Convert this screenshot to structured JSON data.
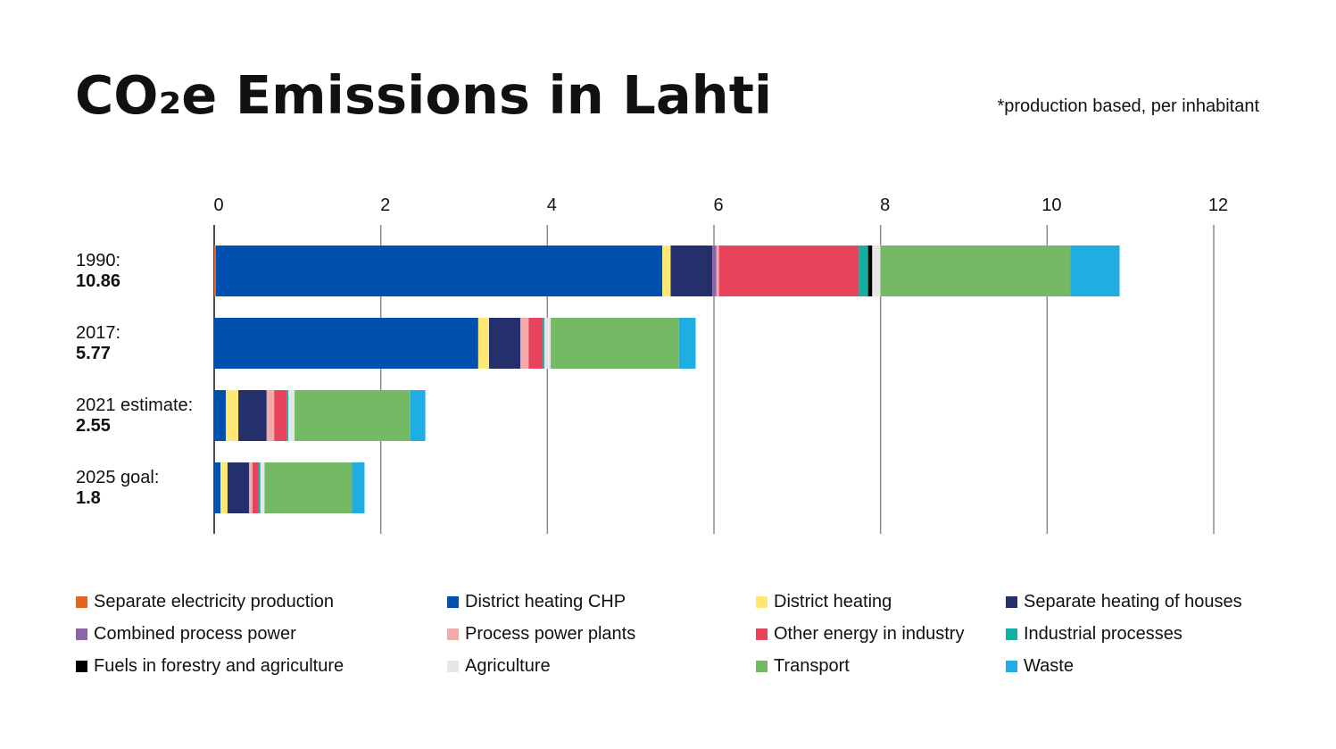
{
  "chart_data": {
    "type": "bar",
    "orientation": "horizontal",
    "stacked": true,
    "title": "CO₂e Emissions in Lahti",
    "subtitle": "*production based, per inhabitant",
    "xlim": [
      0,
      12
    ],
    "xticks": [
      "0",
      "2",
      "4",
      "6",
      "8",
      "10",
      "12"
    ],
    "grid": true,
    "legend_position": "bottom",
    "categories": [
      {
        "label": "1990:",
        "total": "10.86"
      },
      {
        "label": "2017:",
        "total": "5.77"
      },
      {
        "label": "2021 estimate:",
        "total": "2.55"
      },
      {
        "label": "2025 goal:",
        "total": "1.8"
      }
    ],
    "series": [
      {
        "name": "Separate electricity production",
        "color": "#e8641e",
        "values": [
          0.02,
          0,
          0,
          0
        ]
      },
      {
        "name": "District heating CHP",
        "color": "#0050b0",
        "values": [
          5.36,
          3.17,
          0.14,
          0.075
        ]
      },
      {
        "name": "District heating",
        "color": "#ffe974",
        "values": [
          0.1,
          0.13,
          0.15,
          0.085
        ]
      },
      {
        "name": "Separate heating of houses",
        "color": "#24306b",
        "values": [
          0.5,
          0.375,
          0.34,
          0.26
        ]
      },
      {
        "name": "Combined process power",
        "color": "#8c64a8",
        "values": [
          0.05,
          0,
          0,
          0
        ]
      },
      {
        "name": "Process power plants",
        "color": "#f4aaaa",
        "values": [
          0.03,
          0.1,
          0.09,
          0.04
        ]
      },
      {
        "name": "Other energy in industry",
        "color": "#e8435c",
        "values": [
          1.68,
          0.17,
          0.15,
          0.065
        ]
      },
      {
        "name": "Industrial processes",
        "color": "#10b0a4",
        "values": [
          0.11,
          0.02,
          0.02,
          0.03
        ]
      },
      {
        "name": "Fuels in forestry and agriculture",
        "color": "#000000",
        "values": [
          0.05,
          0,
          0,
          0
        ]
      },
      {
        "name": "Agriculture",
        "color": "#e6e6e6",
        "values": [
          0.1,
          0.075,
          0.075,
          0.05
        ]
      },
      {
        "name": "Transport",
        "color": "#74ba64",
        "values": [
          2.28,
          1.54,
          1.39,
          1.05
        ]
      },
      {
        "name": "Waste",
        "color": "#20ade4",
        "values": [
          0.59,
          0.2,
          0.18,
          0.15
        ]
      }
    ]
  }
}
